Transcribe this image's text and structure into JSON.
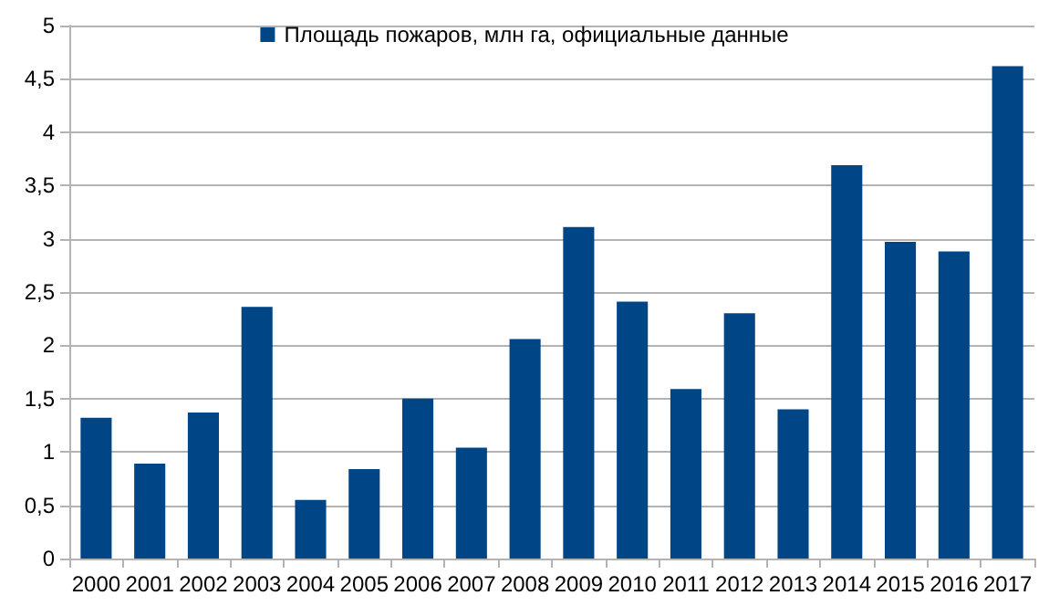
{
  "chart_data": {
    "type": "bar",
    "categories": [
      "2000",
      "2001",
      "2002",
      "2003",
      "2004",
      "2005",
      "2006",
      "2007",
      "2008",
      "2009",
      "2010",
      "2011",
      "2012",
      "2013",
      "2014",
      "2015",
      "2016",
      "2017"
    ],
    "series": [
      {
        "name": "Площадь пожаров, млн га, официальные данные",
        "color": "#004586",
        "values": [
          1.32,
          0.89,
          1.37,
          2.36,
          0.55,
          0.84,
          1.5,
          1.04,
          2.06,
          3.11,
          2.41,
          1.59,
          2.3,
          1.4,
          3.69,
          2.97,
          2.88,
          4.62
        ]
      }
    ],
    "ylim": [
      0,
      5
    ],
    "yticks": [
      0,
      {
        "value": 0.5,
        "label": "0,5"
      },
      1,
      {
        "value": 1.5,
        "label": "1,5"
      },
      2,
      {
        "value": 2.5,
        "label": "2,5"
      },
      3,
      {
        "value": 3.5,
        "label": "3,5"
      },
      4,
      {
        "value": 4.5,
        "label": "4,5"
      },
      5
    ],
    "grid": "y",
    "legend": "top"
  }
}
